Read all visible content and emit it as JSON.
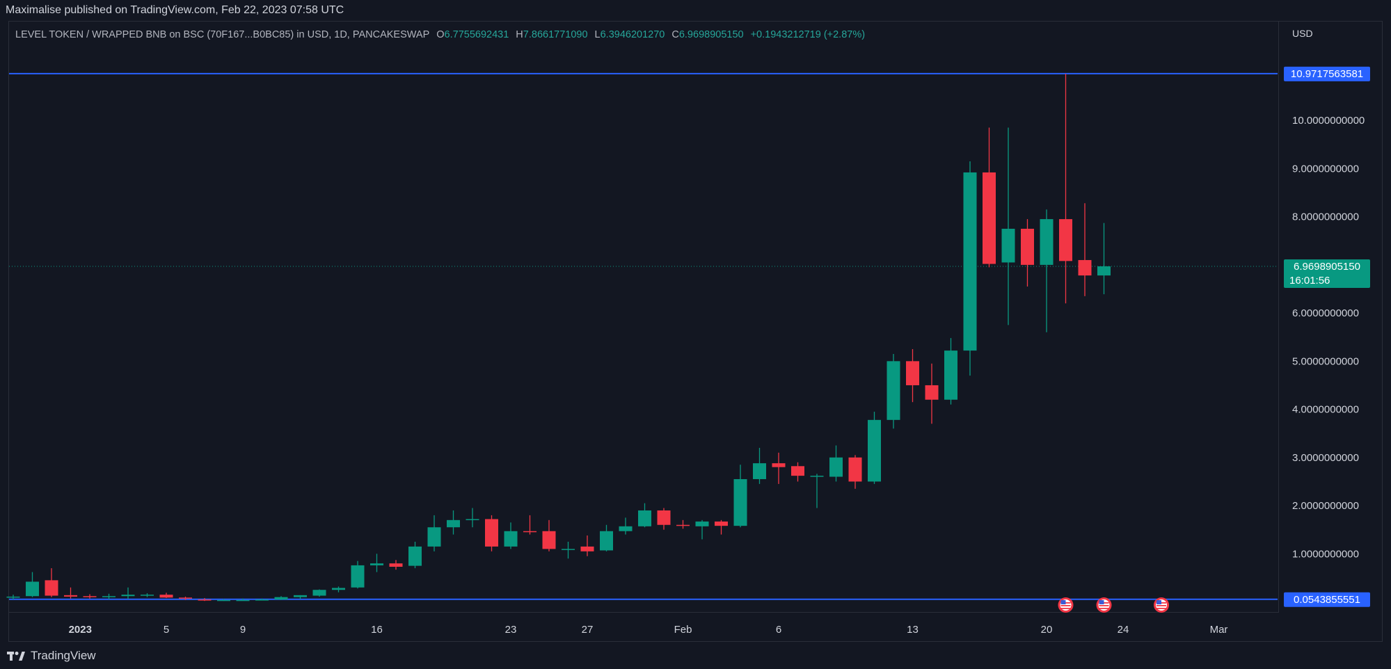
{
  "publish_line": "Maximalise published on TradingView.com, Feb 22, 2023 07:58 UTC",
  "legend": {
    "symbol": "LEVEL TOKEN / WRAPPED BNB on BSC (70F167...B0BC85) in USD, 1D, PANCAKESWAP",
    "o_label": "O",
    "o_value": "6.7755692431",
    "h_label": "H",
    "h_value": "7.8661771090",
    "l_label": "L",
    "l_value": "6.3946201270",
    "c_label": "C",
    "c_value": "6.9698905150",
    "change": "+0.1943212719 (+2.87%)"
  },
  "currency": "USD",
  "footer": {
    "brand": "TradingView"
  },
  "colors": {
    "up": "#089981",
    "down": "#f23645",
    "hline": "#2962ff",
    "price_tag": "#089981"
  },
  "chart_data": {
    "type": "candlestick",
    "ylim": [
      -0.18,
      11.75
    ],
    "y_ticks": [
      {
        "value": 1,
        "label": "1.0000000000"
      },
      {
        "value": 2,
        "label": "2.0000000000"
      },
      {
        "value": 3,
        "label": "3.0000000000"
      },
      {
        "value": 4,
        "label": "4.0000000000"
      },
      {
        "value": 5,
        "label": "5.0000000000"
      },
      {
        "value": 6,
        "label": "6.0000000000"
      },
      {
        "value": 8,
        "label": "8.0000000000"
      },
      {
        "value": 9,
        "label": "9.0000000000"
      },
      {
        "value": 10,
        "label": "10.0000000000"
      }
    ],
    "x_ticks": [
      {
        "index": 3.5,
        "label": "2023",
        "bold": true
      },
      {
        "index": 8,
        "label": "5"
      },
      {
        "index": 12,
        "label": "9"
      },
      {
        "index": 19,
        "label": "16"
      },
      {
        "index": 26,
        "label": "23"
      },
      {
        "index": 30,
        "label": "27"
      },
      {
        "index": 35,
        "label": "Feb"
      },
      {
        "index": 40,
        "label": "6"
      },
      {
        "index": 47,
        "label": "13"
      },
      {
        "index": 54,
        "label": "20"
      },
      {
        "index": 58,
        "label": "24"
      },
      {
        "index": 63,
        "label": "Mar"
      }
    ],
    "horizontal_lines": [
      {
        "value": 10.9717563581,
        "label": "10.9717563581"
      },
      {
        "value": 0.0543855551,
        "label": "0.0543855551"
      }
    ],
    "last_price": {
      "value": 6.969890515,
      "label": "6.9698905150",
      "countdown": "16:01:56"
    },
    "event_markers": [
      55,
      57,
      60
    ],
    "candles": [
      {
        "o": 0.09,
        "h": 0.15,
        "l": 0.05,
        "c": 0.11
      },
      {
        "o": 0.12,
        "h": 0.62,
        "l": 0.1,
        "c": 0.42
      },
      {
        "o": 0.45,
        "h": 0.7,
        "l": 0.1,
        "c": 0.13
      },
      {
        "o": 0.14,
        "h": 0.3,
        "l": 0.07,
        "c": 0.11
      },
      {
        "o": 0.12,
        "h": 0.16,
        "l": 0.07,
        "c": 0.1
      },
      {
        "o": 0.1,
        "h": 0.17,
        "l": 0.05,
        "c": 0.12
      },
      {
        "o": 0.12,
        "h": 0.3,
        "l": 0.06,
        "c": 0.15
      },
      {
        "o": 0.14,
        "h": 0.18,
        "l": 0.1,
        "c": 0.15
      },
      {
        "o": 0.15,
        "h": 0.19,
        "l": 0.08,
        "c": 0.09
      },
      {
        "o": 0.09,
        "h": 0.11,
        "l": 0.04,
        "c": 0.07
      },
      {
        "o": 0.05,
        "h": 0.08,
        "l": 0.02,
        "c": 0.04
      },
      {
        "o": 0.04,
        "h": 0.06,
        "l": 0.02,
        "c": 0.04
      },
      {
        "o": 0.04,
        "h": 0.07,
        "l": 0.03,
        "c": 0.04
      },
      {
        "o": 0.04,
        "h": 0.07,
        "l": 0.03,
        "c": 0.05
      },
      {
        "o": 0.05,
        "h": 0.12,
        "l": 0.04,
        "c": 0.1
      },
      {
        "o": 0.1,
        "h": 0.14,
        "l": 0.06,
        "c": 0.14
      },
      {
        "o": 0.13,
        "h": 0.26,
        "l": 0.11,
        "c": 0.25
      },
      {
        "o": 0.25,
        "h": 0.32,
        "l": 0.2,
        "c": 0.29
      },
      {
        "o": 0.3,
        "h": 0.85,
        "l": 0.28,
        "c": 0.76
      },
      {
        "o": 0.76,
        "h": 1.0,
        "l": 0.62,
        "c": 0.8
      },
      {
        "o": 0.8,
        "h": 0.87,
        "l": 0.67,
        "c": 0.73
      },
      {
        "o": 0.75,
        "h": 1.25,
        "l": 0.7,
        "c": 1.15
      },
      {
        "o": 1.15,
        "h": 1.8,
        "l": 1.05,
        "c": 1.55
      },
      {
        "o": 1.55,
        "h": 1.9,
        "l": 1.4,
        "c": 1.7
      },
      {
        "o": 1.7,
        "h": 1.95,
        "l": 1.55,
        "c": 1.72
      },
      {
        "o": 1.72,
        "h": 1.8,
        "l": 1.05,
        "c": 1.15
      },
      {
        "o": 1.15,
        "h": 1.65,
        "l": 1.1,
        "c": 1.47
      },
      {
        "o": 1.47,
        "h": 1.8,
        "l": 1.4,
        "c": 1.46
      },
      {
        "o": 1.47,
        "h": 1.7,
        "l": 1.05,
        "c": 1.1
      },
      {
        "o": 1.1,
        "h": 1.25,
        "l": 0.9,
        "c": 1.1
      },
      {
        "o": 1.15,
        "h": 1.38,
        "l": 0.95,
        "c": 1.05
      },
      {
        "o": 1.07,
        "h": 1.6,
        "l": 1.05,
        "c": 1.47
      },
      {
        "o": 1.47,
        "h": 1.75,
        "l": 1.4,
        "c": 1.57
      },
      {
        "o": 1.57,
        "h": 2.05,
        "l": 1.55,
        "c": 1.9
      },
      {
        "o": 1.9,
        "h": 1.95,
        "l": 1.5,
        "c": 1.6
      },
      {
        "o": 1.6,
        "h": 1.7,
        "l": 1.52,
        "c": 1.58
      },
      {
        "o": 1.57,
        "h": 1.7,
        "l": 1.3,
        "c": 1.67
      },
      {
        "o": 1.67,
        "h": 1.7,
        "l": 1.4,
        "c": 1.58
      },
      {
        "o": 1.58,
        "h": 2.85,
        "l": 1.55,
        "c": 2.55
      },
      {
        "o": 2.55,
        "h": 3.2,
        "l": 2.45,
        "c": 2.88
      },
      {
        "o": 2.88,
        "h": 3.1,
        "l": 2.45,
        "c": 2.8
      },
      {
        "o": 2.82,
        "h": 2.9,
        "l": 2.5,
        "c": 2.62
      },
      {
        "o": 2.62,
        "h": 2.66,
        "l": 1.95,
        "c": 2.62
      },
      {
        "o": 2.6,
        "h": 3.25,
        "l": 2.5,
        "c": 3.0
      },
      {
        "o": 3.0,
        "h": 3.05,
        "l": 2.35,
        "c": 2.5
      },
      {
        "o": 2.5,
        "h": 3.95,
        "l": 2.45,
        "c": 3.78
      },
      {
        "o": 3.78,
        "h": 5.15,
        "l": 3.6,
        "c": 5.0
      },
      {
        "o": 5.0,
        "h": 5.25,
        "l": 4.15,
        "c": 4.5
      },
      {
        "o": 4.5,
        "h": 4.95,
        "l": 3.7,
        "c": 4.2
      },
      {
        "o": 4.2,
        "h": 5.48,
        "l": 4.1,
        "c": 5.22
      },
      {
        "o": 5.22,
        "h": 9.15,
        "l": 4.7,
        "c": 8.92
      },
      {
        "o": 8.92,
        "h": 9.85,
        "l": 6.95,
        "c": 7.02
      },
      {
        "o": 7.05,
        "h": 9.85,
        "l": 5.75,
        "c": 7.75
      },
      {
        "o": 7.75,
        "h": 7.95,
        "l": 6.55,
        "c": 7.0
      },
      {
        "o": 7.0,
        "h": 8.15,
        "l": 5.6,
        "c": 7.95
      },
      {
        "o": 7.95,
        "h": 10.97,
        "l": 6.2,
        "c": 7.08
      },
      {
        "o": 7.1,
        "h": 8.28,
        "l": 6.35,
        "c": 6.78
      },
      {
        "o": 6.78,
        "h": 7.87,
        "l": 6.39,
        "c": 6.97
      }
    ]
  }
}
